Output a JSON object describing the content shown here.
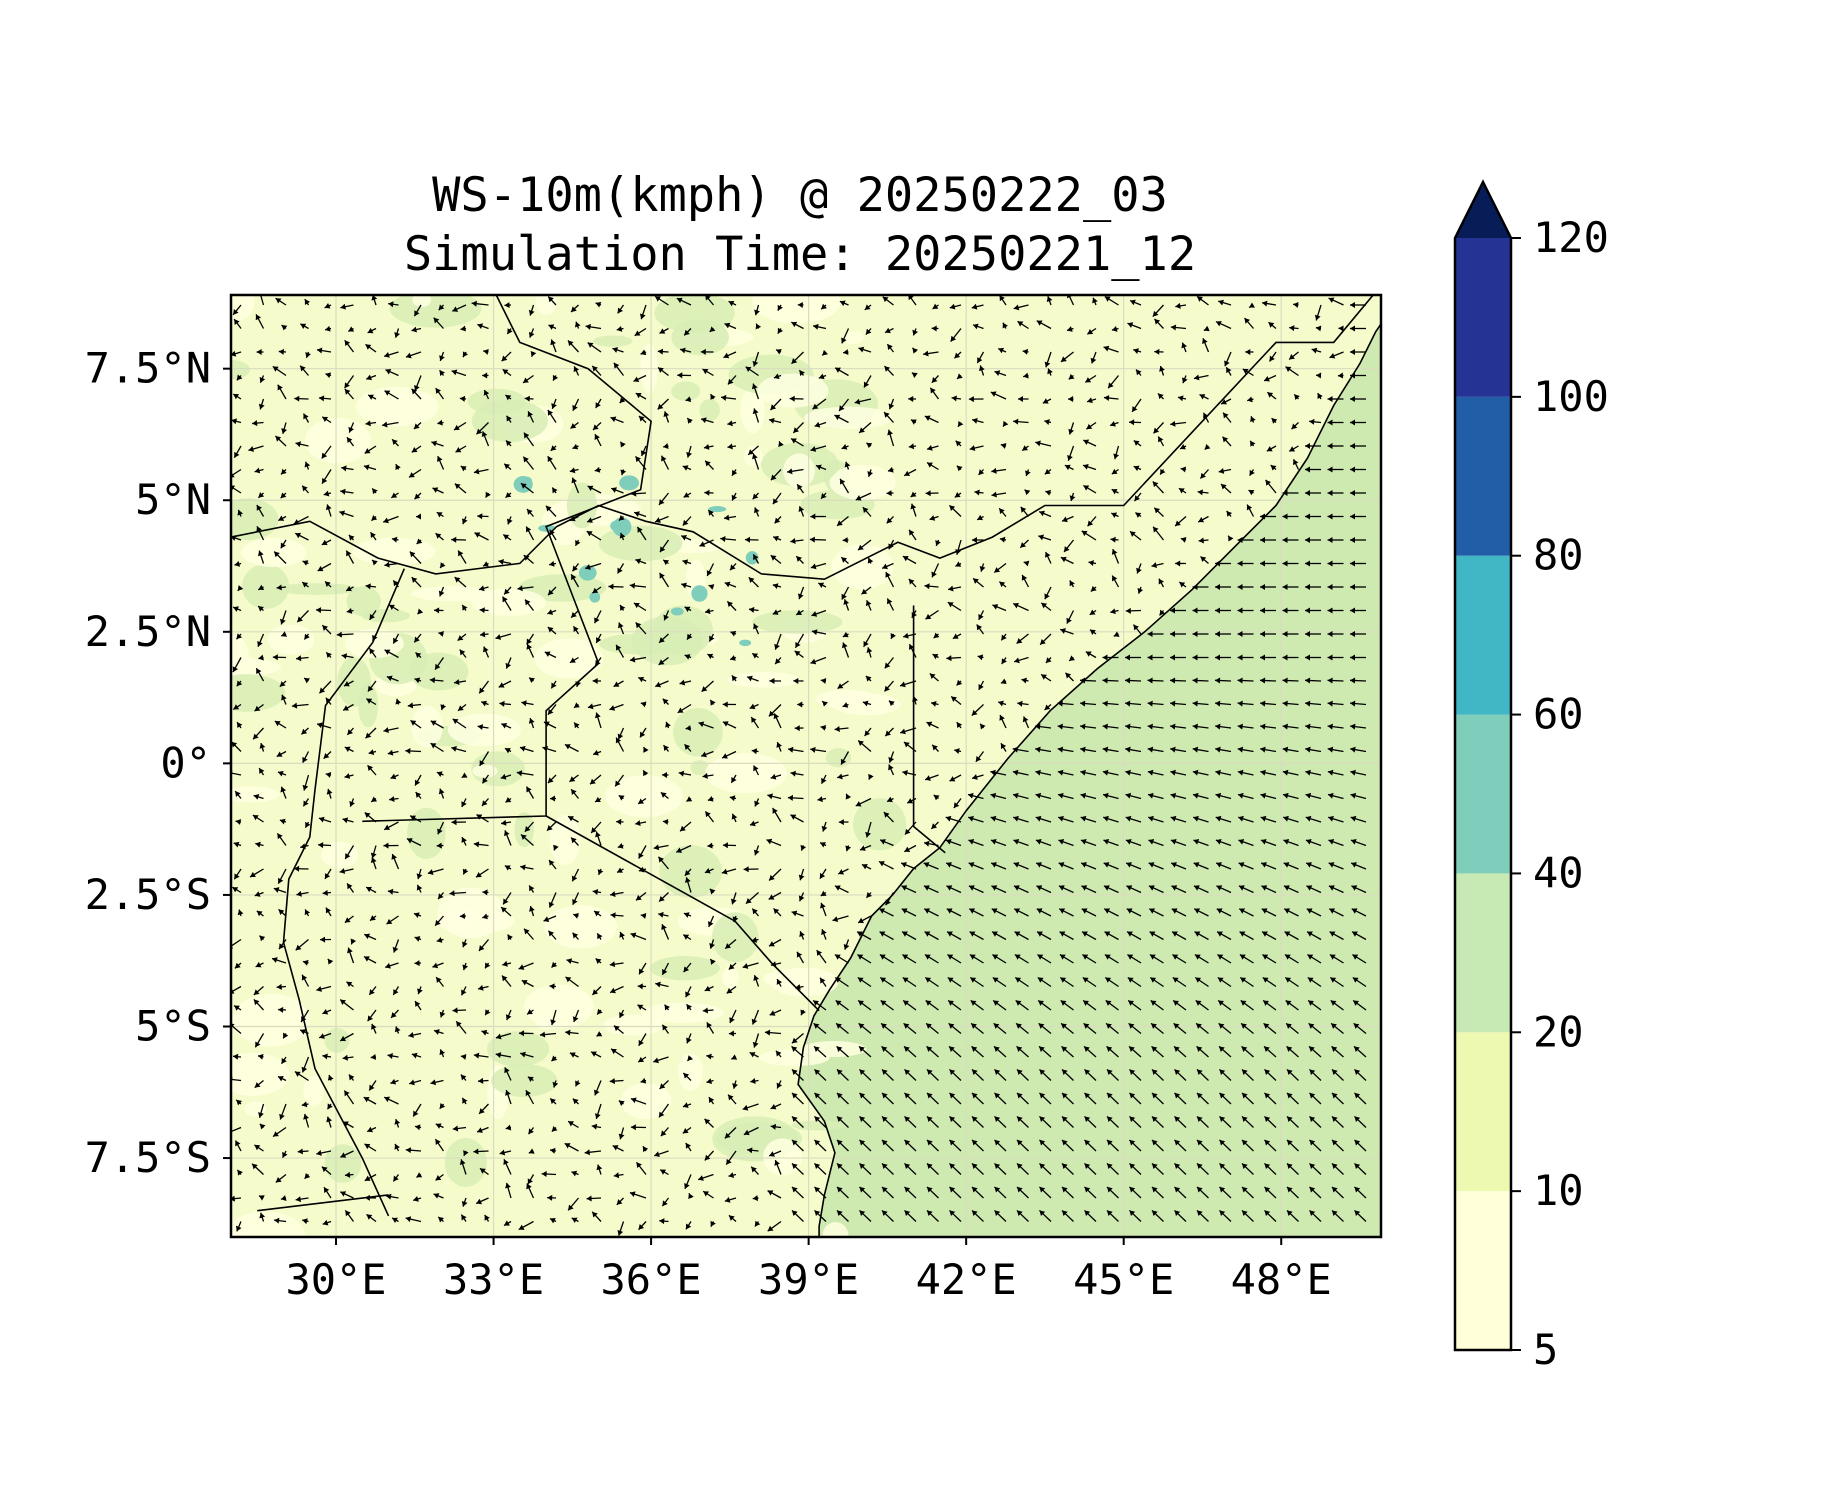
{
  "title": {
    "line1": "WS-10m(kmph) @ 20250222_03",
    "line2": "Simulation Time: 20250221_12"
  },
  "map": {
    "lon_range": [
      28.0,
      49.9
    ],
    "lat_range": [
      -9.0,
      8.9
    ],
    "lon_ticks": [
      {
        "value": 30,
        "label": "30°E"
      },
      {
        "value": 33,
        "label": "33°E"
      },
      {
        "value": 36,
        "label": "36°E"
      },
      {
        "value": 39,
        "label": "39°E"
      },
      {
        "value": 42,
        "label": "42°E"
      },
      {
        "value": 45,
        "label": "45°E"
      },
      {
        "value": 48,
        "label": "48°E"
      }
    ],
    "lat_ticks": [
      {
        "value": 7.5,
        "label": "7.5°N"
      },
      {
        "value": 5,
        "label": "5°N"
      },
      {
        "value": 2.5,
        "label": "2.5°N"
      },
      {
        "value": 0,
        "label": "0°"
      },
      {
        "value": -2.5,
        "label": "2.5°S"
      },
      {
        "value": -5,
        "label": "5°S"
      },
      {
        "value": -7.5,
        "label": "7.5°S"
      }
    ],
    "gridlines": true,
    "vectors": "wind arrows at 10 m"
  },
  "colorbar": {
    "extend": "max",
    "levels": [
      {
        "from": 5,
        "to": 10,
        "color": "#ffffd9"
      },
      {
        "from": 10,
        "to": 20,
        "color": "#edf8b1"
      },
      {
        "from": 20,
        "to": 40,
        "color": "#c7e9b4"
      },
      {
        "from": 40,
        "to": 60,
        "color": "#7fcdbb"
      },
      {
        "from": 60,
        "to": 80,
        "color": "#41b6c4"
      },
      {
        "from": 80,
        "to": 100,
        "color": "#225ea8"
      },
      {
        "from": 100,
        "to": 120,
        "color": "#253494"
      }
    ],
    "over_color": "#081d58",
    "tick_labels": [
      "5",
      "10",
      "20",
      "40",
      "60",
      "80",
      "100",
      "120"
    ]
  }
}
